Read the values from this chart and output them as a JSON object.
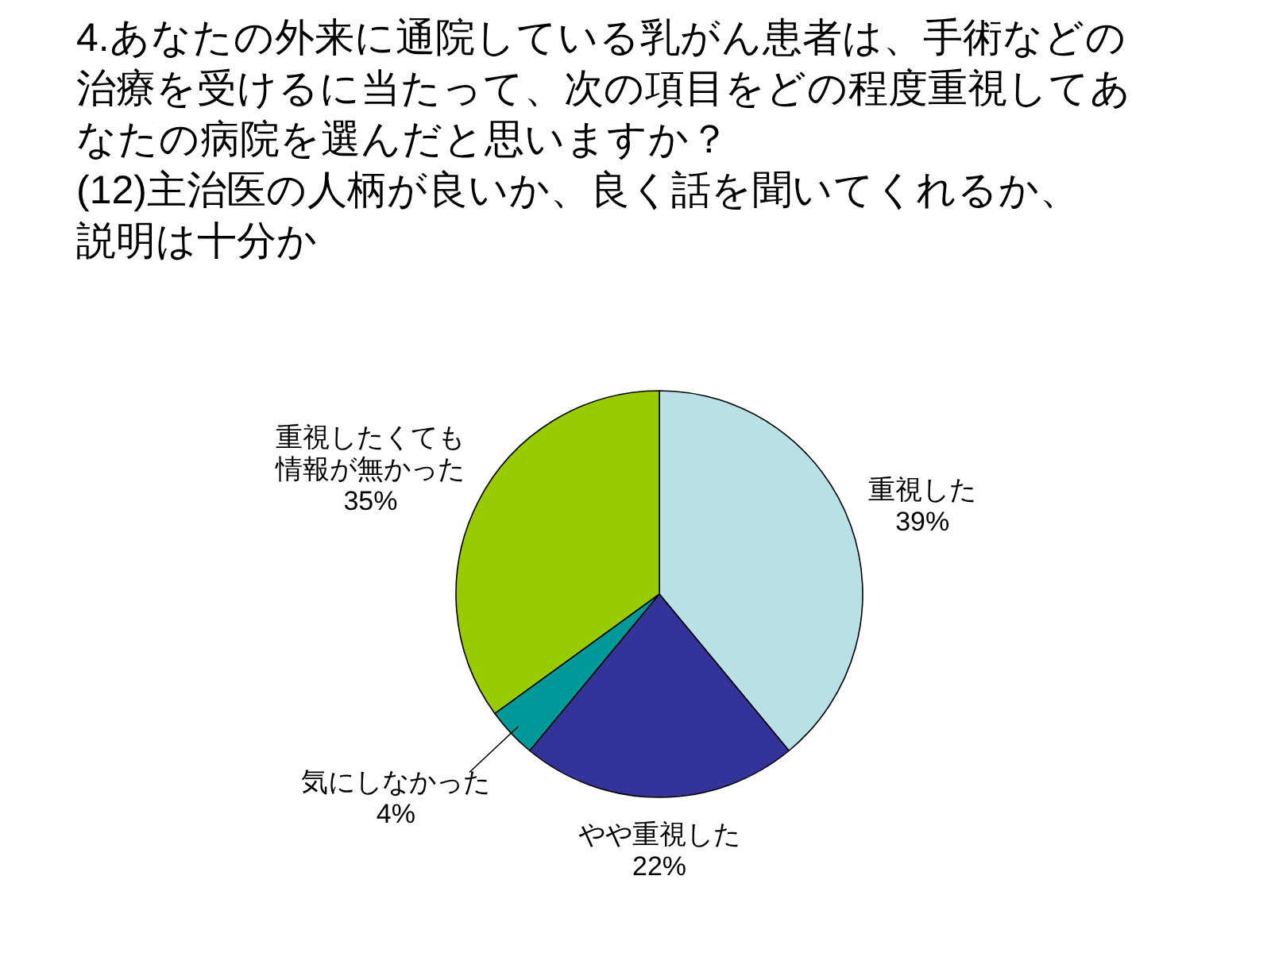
{
  "chart_data": {
    "type": "pie",
    "title": "4.あなたの外来に通院している乳がん患者は、手術などの治療を受けるに当たって、次の項目をどの程度重視してあなたの病院を選んだと思いますか？",
    "subtitle": "(12)主治医の人柄が良いか、良く話を聞いてくれるか、説明は十分か",
    "categories": [
      "重視した",
      "やや重視した",
      "気にしなかった",
      "重視したくても情報が無かった"
    ],
    "values": [
      39,
      22,
      4,
      35
    ],
    "colors": [
      "#b9e0e4",
      "#333399",
      "#009999",
      "#99cc00"
    ],
    "value_labels": [
      "39%",
      "22%",
      "4%",
      "35%"
    ]
  }
}
